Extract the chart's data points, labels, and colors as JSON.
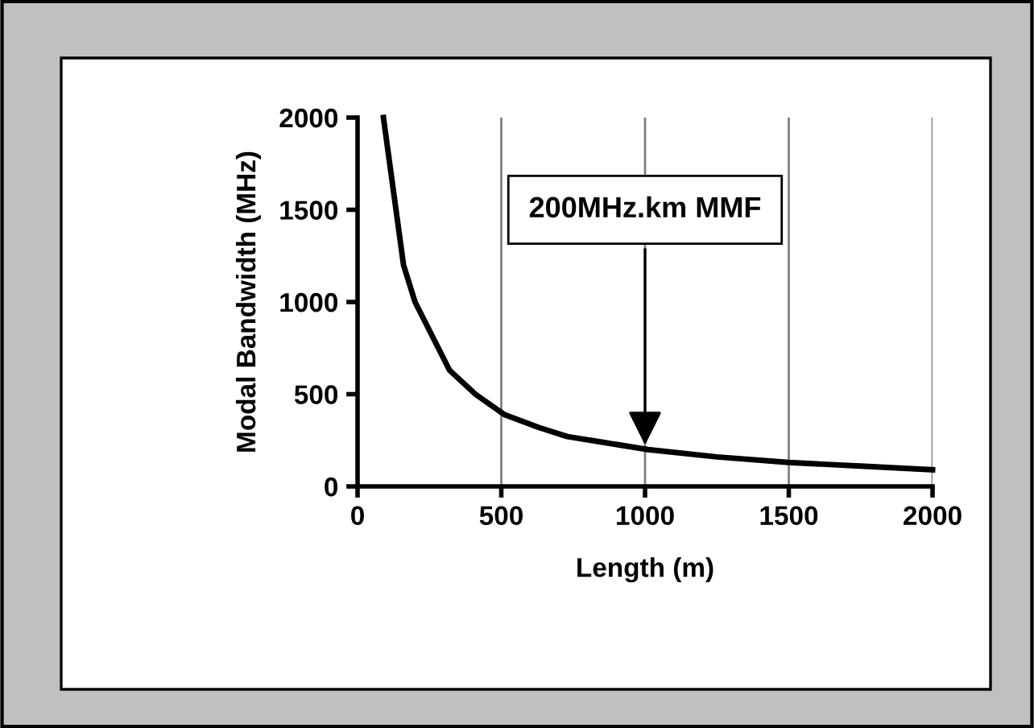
{
  "chart_data": {
    "type": "line",
    "xlabel": "Length (m)",
    "ylabel": "Modal Bandwidth (MHz)",
    "x": [
      90,
      160,
      200,
      320,
      410,
      510,
      630,
      730,
      850,
      1010,
      1250,
      1500,
      1750,
      2000
    ],
    "series": [
      {
        "color": "#000000",
        "values": [
          2000,
          1200,
          1000,
          630,
          500,
          390,
          320,
          270,
          240,
          200,
          160,
          130,
          110,
          90
        ]
      }
    ],
    "xlim": [
      0,
      2000
    ],
    "xticks": [
      0,
      500,
      1000,
      1500,
      2000
    ],
    "ylim": [
      0,
      2000
    ],
    "yticks": [
      0,
      500,
      1000,
      1500,
      2000
    ],
    "grid": "x",
    "legend": false,
    "line_style": "solid",
    "marker": "none",
    "annotations": [
      {
        "text": "200MHz.km MMF",
        "x": 1000,
        "y": 200
      }
    ]
  }
}
